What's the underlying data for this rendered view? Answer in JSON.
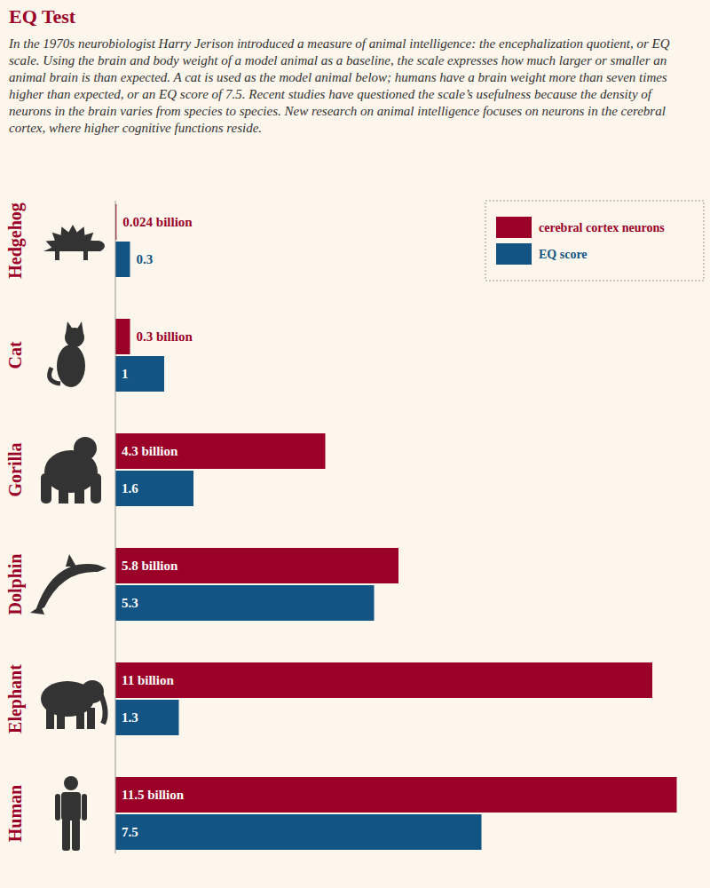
{
  "chart_data": {
    "type": "bar",
    "orientation": "horizontal",
    "title": "EQ Test",
    "subtitle": "In the 1970s neurobiologist Harry Jerison introduced a measure of animal intelligence: the encephalization quotient, or EQ scale. Using the brain and body weight of a model animal as a baseline, the scale expresses how much larger or smaller an animal brain is than expected. A cat is used as the model animal below; humans have a brain weight more than seven times higher than expected, or an EQ score of 7.5. Recent studies have questioned the scale’s usefulness because the density of neurons in the brain varies from species to species. New research on animal intelligence focuses on neurons in the cerebral cortex, where higher cognitive functions reside.",
    "categories": [
      "Hedgehog",
      "Cat",
      "Gorilla",
      "Dolphin",
      "Elephant",
      "Human"
    ],
    "series": [
      {
        "name": "cerebral cortex neurons",
        "color": "#9b0028",
        "values": [
          0.024,
          0.3,
          4.3,
          5.8,
          11,
          11.5
        ],
        "value_labels": [
          "0.024 billion",
          "0.3 billion",
          "4.3 billion",
          "5.8 billion",
          "11 billion",
          "11.5 billion"
        ]
      },
      {
        "name": "EQ score",
        "color": "#125584",
        "values": [
          0.3,
          1,
          1.6,
          5.3,
          1.3,
          7.5
        ]
      }
    ],
    "xlim": [
      0,
      12
    ],
    "tick_labels": false,
    "grid": false,
    "legend": "top-right",
    "data_labels": true
  }
}
